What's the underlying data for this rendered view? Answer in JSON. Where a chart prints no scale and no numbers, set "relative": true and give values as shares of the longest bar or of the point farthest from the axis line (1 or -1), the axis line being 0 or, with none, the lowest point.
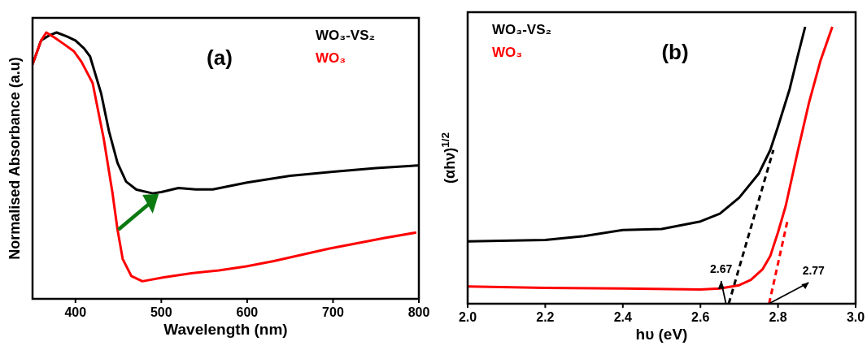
{
  "chart_data": [
    {
      "type": "line",
      "title": "(a)",
      "xlabel": "Wavelength (nm)",
      "ylabel": "Normalised Absorbance (a.u)",
      "relative": true,
      "xlim": [
        350,
        800
      ],
      "xticks": [
        400,
        500,
        600,
        700,
        800
      ],
      "legend": "top right",
      "tick_labels": "x",
      "series": [
        {
          "name": "WO₃-VS₂",
          "color": "#000000",
          "x": [
            350,
            360,
            370,
            378,
            390,
            400,
            410,
            417,
            430,
            439,
            449,
            459,
            471,
            490,
            500,
            520,
            540,
            560,
            580,
            600,
            650,
            700,
            750,
            800
          ],
          "values": [
            0.88,
            0.97,
            0.99,
            1.0,
            0.985,
            0.97,
            0.94,
            0.91,
            0.77,
            0.63,
            0.51,
            0.44,
            0.41,
            0.396,
            0.401,
            0.416,
            0.411,
            0.411,
            0.424,
            0.437,
            0.462,
            0.477,
            0.491,
            0.501
          ]
        },
        {
          "name": "WO₃",
          "color": "#ff0000",
          "x": [
            350,
            360,
            366,
            376,
            385,
            398,
            407,
            420,
            433,
            443,
            449,
            455,
            465,
            478,
            503,
            535,
            567,
            599,
            631,
            695,
            759,
            797
          ],
          "values": [
            0.88,
            0.97,
            1.0,
            0.98,
            0.96,
            0.93,
            0.89,
            0.81,
            0.6,
            0.4,
            0.26,
            0.15,
            0.086,
            0.066,
            0.081,
            0.096,
            0.107,
            0.122,
            0.142,
            0.188,
            0.228,
            0.249
          ]
        }
      ]
    },
    {
      "type": "line",
      "title": "(b)",
      "xlabel": "hυ (eV)",
      "ylabel": "(αhν)$^{1/2}$",
      "relative": true,
      "xlim": [
        2.0,
        3.0
      ],
      "xticks": [
        {
          "value": 2.0,
          "label": "2.0"
        },
        2.2,
        2.4,
        2.6,
        2.8,
        {
          "value": 3.0,
          "label": "3.0"
        }
      ],
      "legend": "top left",
      "tick_labels": "x",
      "annotations": [
        {
          "text": "2.67",
          "x": 2.67,
          "y": 0
        },
        {
          "text": "2.77",
          "x": 2.77,
          "y": 0
        }
      ],
      "series": [
        {
          "name": "WO₃-VS₂",
          "color": "#000000",
          "x": [
            2.0,
            2.2,
            2.3,
            2.4,
            2.5,
            2.6,
            2.65,
            2.7,
            2.75,
            2.78,
            2.8,
            2.83,
            2.85,
            2.87
          ],
          "values": [
            0.225,
            0.23,
            0.244,
            0.266,
            0.27,
            0.297,
            0.325,
            0.383,
            0.469,
            0.555,
            0.64,
            0.775,
            0.89,
            1.0
          ]
        },
        {
          "name": "WO₃",
          "color": "#ff0000",
          "x": [
            2.0,
            2.2,
            2.4,
            2.6,
            2.65,
            2.7,
            2.73,
            2.76,
            2.78,
            2.8,
            2.82,
            2.85,
            2.88,
            2.91,
            2.94
          ],
          "values": [
            0.062,
            0.057,
            0.055,
            0.051,
            0.055,
            0.067,
            0.086,
            0.124,
            0.172,
            0.258,
            0.354,
            0.545,
            0.727,
            0.88,
            1.0
          ]
        },
        {
          "type": "line",
          "color": "#000000",
          "line_style": "dashed",
          "x": [
            2.673,
            2.788
          ],
          "values": [
            0,
            0.555
          ]
        },
        {
          "type": "line",
          "color": "#ff0000",
          "line_style": "dashed",
          "x": [
            2.777,
            2.824
          ],
          "values": [
            0,
            0.297
          ]
        }
      ]
    }
  ]
}
